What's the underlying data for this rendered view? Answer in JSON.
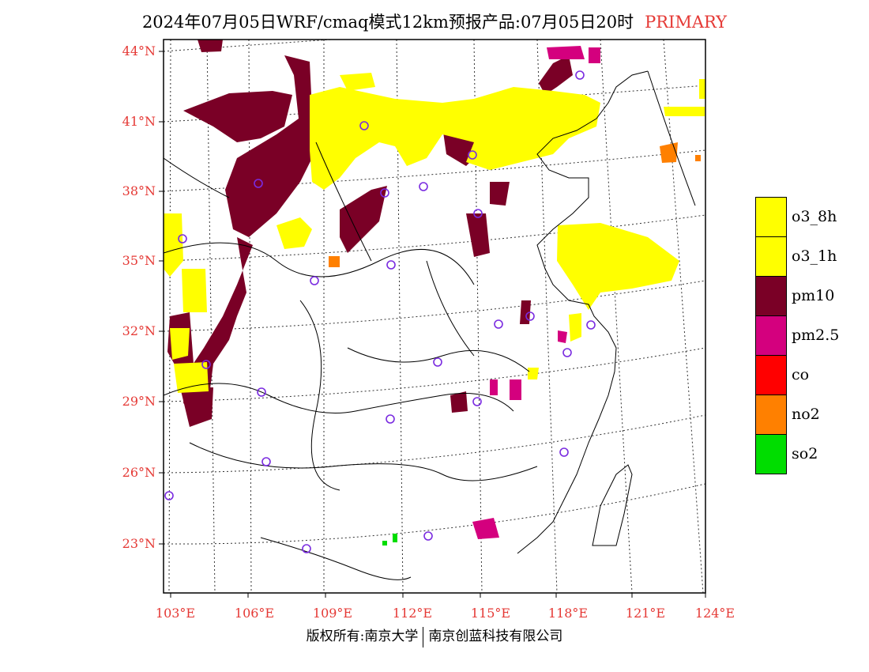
{
  "title": {
    "text": "2024年07月05日WRF/cmaq模式12km预报产品:07月05日20时",
    "tag": "PRIMARY"
  },
  "lat_labels": [
    "44°N",
    "41°N",
    "38°N",
    "35°N",
    "32°N",
    "29°N",
    "26°N",
    "23°N"
  ],
  "lon_labels": [
    "103°E",
    "106°E",
    "109°E",
    "112°E",
    "115°E",
    "118°E",
    "121°E",
    "124°E"
  ],
  "legend": [
    {
      "label": "o3_8h",
      "color": "#ffff00"
    },
    {
      "label": "o3_1h",
      "color": "#ffff00"
    },
    {
      "label": "pm10",
      "color": "#7a0026"
    },
    {
      "label": "pm2.5",
      "color": "#d4007e"
    },
    {
      "label": "co",
      "color": "#ff0000"
    },
    {
      "label": "no2",
      "color": "#ff8000"
    },
    {
      "label": "so2",
      "color": "#00dd00"
    }
  ],
  "credit": {
    "left": "版权所有:南京大学",
    "right": "南京创蓝科技有限公司"
  }
}
